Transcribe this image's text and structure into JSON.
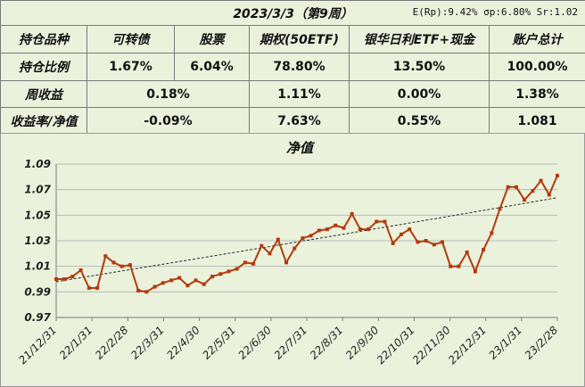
{
  "header": {
    "title": "2023/3/3（第9周）",
    "metrics": "E(Rp):9.42%  σp:6.80%  Sr:1.02"
  },
  "table": {
    "columns": [
      "持仓品种",
      "可转债",
      "股票",
      "期权(50ETF)",
      "银华日利ETF+现金",
      "账户总计"
    ],
    "row_position": {
      "label": "持仓比例",
      "values": [
        "1.67%",
        "6.04%",
        "78.80%",
        "13.50%",
        "100.00%"
      ]
    },
    "row_weekly": {
      "label": "周收益",
      "values": [
        "0.18%",
        "1.11%",
        "0.00%",
        "1.38%"
      ]
    },
    "row_yield": {
      "label": "收益率/净值",
      "values": [
        "-0.09%",
        "7.63%",
        "0.55%",
        "1.081"
      ]
    }
  },
  "chart_data": {
    "type": "line",
    "title": "净值",
    "ylim": [
      0.97,
      1.09
    ],
    "yticks": [
      "0.97",
      "0.99",
      "1.01",
      "1.03",
      "1.05",
      "1.07",
      "1.09"
    ],
    "xticks": [
      "21/12/31",
      "22/1/31",
      "22/2/28",
      "22/3/31",
      "22/4/30",
      "22/5/31",
      "22/6/30",
      "22/7/31",
      "22/8/31",
      "22/9/30",
      "22/10/31",
      "22/11/30",
      "22/12/31",
      "23/1/31",
      "23/2/28"
    ],
    "grid": true,
    "colors": {
      "series": "#b33a0c",
      "trend": "#2a2a2a"
    },
    "series": [
      {
        "values": [
          1.0,
          1.0,
          1.002,
          1.007,
          0.993,
          0.993,
          1.018,
          1.013,
          1.01,
          1.011,
          0.991,
          0.99,
          0.994,
          0.997,
          0.999,
          1.001,
          0.995,
          0.999,
          0.996,
          1.002,
          1.004,
          1.006,
          1.008,
          1.013,
          1.012,
          1.026,
          1.02,
          1.031,
          1.013,
          1.024,
          1.032,
          1.034,
          1.038,
          1.039,
          1.042,
          1.04,
          1.051,
          1.039,
          1.039,
          1.045,
          1.045,
          1.028,
          1.035,
          1.039,
          1.029,
          1.03,
          1.027,
          1.029,
          1.01,
          1.01,
          1.021,
          1.006,
          1.023,
          1.036,
          1.055,
          1.072,
          1.072,
          1.062,
          1.069,
          1.077,
          1.066,
          1.081
        ]
      },
      {
        "values": [
          0.998,
          1.0637
        ]
      }
    ]
  }
}
